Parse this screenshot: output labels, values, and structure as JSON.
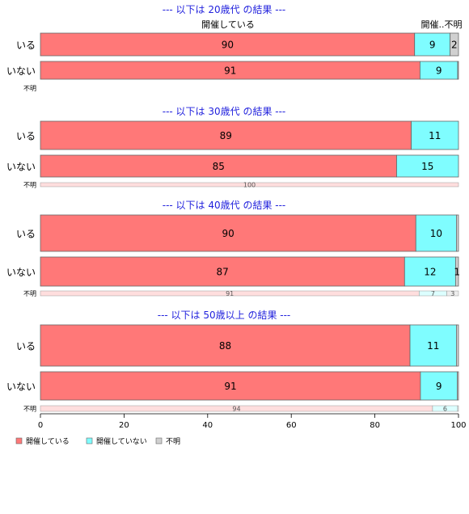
{
  "chart_data": {
    "type": "bar",
    "orientation": "horizontal",
    "stacked": true,
    "xlim": [
      0,
      100
    ],
    "x_ticks": [
      "0",
      "20",
      "40",
      "60",
      "80",
      "100"
    ],
    "legend_placement": "bottom-left",
    "legend": [
      {
        "name": "開催している",
        "color": "#ff7878"
      },
      {
        "name": "開催していない",
        "color": "#7ffdff"
      },
      {
        "name": "不明",
        "color": "#d0d0d0"
      }
    ],
    "header_labels": [
      "開催している",
      "開催..不明"
    ],
    "panels": [
      {
        "title": "--- 以下は 20歳代 の結果 ---",
        "rows": [
          {
            "category": "いる",
            "values": [
              89.5,
              8.5,
              2.0
            ],
            "labels": [
              "90",
              "9",
              "2"
            ]
          },
          {
            "category": "いない",
            "values": [
              90.8,
              9.0,
              0.2
            ],
            "labels": [
              "91",
              "9",
              ""
            ]
          },
          {
            "category": "不明",
            "values": [
              0,
              0,
              0
            ],
            "labels": [
              "",
              "",
              ""
            ]
          }
        ]
      },
      {
        "title": "--- 以下は 30歳代 の結果 ---",
        "rows": [
          {
            "category": "いる",
            "values": [
              88.7,
              11.3,
              0
            ],
            "labels": [
              "89",
              "11",
              ""
            ]
          },
          {
            "category": "いない",
            "values": [
              85.2,
              14.8,
              0
            ],
            "labels": [
              "85",
              "15",
              ""
            ]
          },
          {
            "category": "不明",
            "values": [
              100,
              0,
              0
            ],
            "labels": [
              "100",
              "",
              ""
            ]
          }
        ]
      },
      {
        "title": "--- 以下は 40歳代 の結果 ---",
        "rows": [
          {
            "category": "いる",
            "values": [
              89.8,
              9.7,
              0.5
            ],
            "labels": [
              "90",
              "10",
              ""
            ]
          },
          {
            "category": "いない",
            "values": [
              87.1,
              12.2,
              0.7
            ],
            "labels": [
              "87",
              "12",
              "1"
            ]
          },
          {
            "category": "不明",
            "values": [
              90.6,
              6.6,
              2.8
            ],
            "labels": [
              "91",
              "7",
              "3"
            ]
          }
        ]
      },
      {
        "title": "--- 以下は 50歳以上 の結果 ---",
        "rows": [
          {
            "category": "いる",
            "values": [
              88.4,
              11.1,
              0.5
            ],
            "labels": [
              "88",
              "11",
              ""
            ]
          },
          {
            "category": "いない",
            "values": [
              90.9,
              8.8,
              0.3
            ],
            "labels": [
              "91",
              "9",
              ""
            ]
          },
          {
            "category": "不明",
            "values": [
              93.8,
              6.0,
              0.2
            ],
            "labels": [
              "94",
              "6",
              ""
            ]
          }
        ]
      }
    ]
  }
}
